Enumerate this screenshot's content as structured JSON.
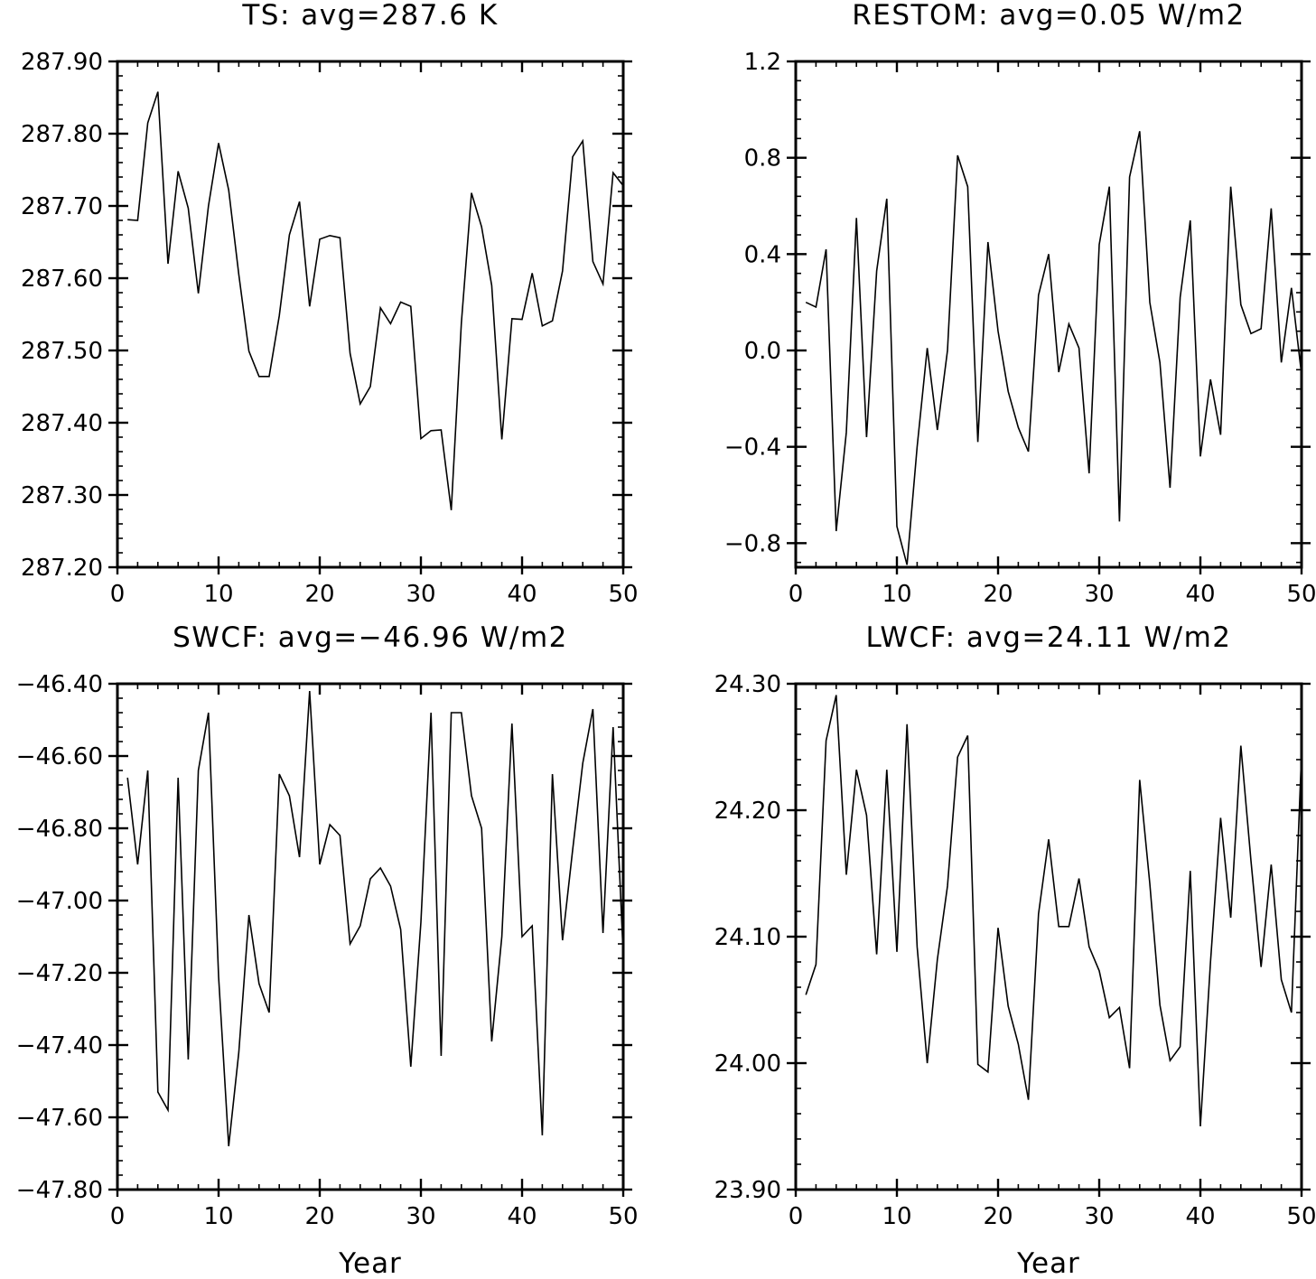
{
  "chart_data": [
    {
      "type": "line",
      "title": "TS: avg=287.6 K",
      "xlabel": "",
      "ylabel": "",
      "xlim": [
        0,
        50
      ],
      "ylim": [
        287.2,
        287.9
      ],
      "x_ticks": [
        0,
        10,
        20,
        30,
        40,
        50
      ],
      "x_tick_labels": [
        "0",
        "10",
        "20",
        "30",
        "40",
        "50"
      ],
      "y_ticks": [
        287.2,
        287.3,
        287.4,
        287.5,
        287.6,
        287.7,
        287.8,
        287.9
      ],
      "y_tick_labels": [
        "287.20",
        "287.30",
        "287.40",
        "287.50",
        "287.60",
        "287.70",
        "287.80",
        "287.90"
      ],
      "x": [
        1,
        2,
        3,
        4,
        5,
        6,
        7,
        8,
        9,
        10,
        11,
        12,
        13,
        14,
        15,
        16,
        17,
        18,
        19,
        20,
        21,
        22,
        23,
        24,
        25,
        26,
        27,
        28,
        29,
        30,
        31,
        32,
        33,
        34,
        35,
        36,
        37,
        38,
        39,
        40,
        41,
        42,
        43,
        44,
        45,
        46,
        47,
        48,
        49,
        50
      ],
      "values": [
        287.681,
        287.68,
        287.815,
        287.858,
        287.62,
        287.748,
        287.697,
        287.579,
        287.7,
        287.787,
        287.722,
        287.605,
        287.499,
        287.464,
        287.464,
        287.548,
        287.66,
        287.706,
        287.561,
        287.654,
        287.659,
        287.656,
        287.496,
        287.426,
        287.45,
        287.559,
        287.537,
        287.567,
        287.561,
        287.378,
        287.389,
        287.39,
        287.279,
        287.538,
        287.718,
        287.671,
        287.59,
        287.377,
        287.544,
        287.543,
        287.607,
        287.534,
        287.541,
        287.61,
        287.768,
        287.79,
        287.623,
        287.592,
        287.746,
        287.728
      ],
      "grid": false
    },
    {
      "type": "line",
      "title": "RESTOM: avg=0.05 W/m2",
      "xlabel": "",
      "ylabel": "",
      "xlim": [
        0,
        50
      ],
      "ylim": [
        -0.9,
        1.2
      ],
      "x_ticks": [
        0,
        10,
        20,
        30,
        40,
        50
      ],
      "x_tick_labels": [
        "0",
        "10",
        "20",
        "30",
        "40",
        "50"
      ],
      "y_ticks": [
        -0.8,
        -0.4,
        0.0,
        0.4,
        0.8,
        1.2
      ],
      "y_tick_labels": [
        "−0.8",
        "−0.4",
        "0.0",
        "0.4",
        "0.8",
        "1.2"
      ],
      "x": [
        1,
        2,
        3,
        4,
        5,
        6,
        7,
        8,
        9,
        10,
        11,
        12,
        13,
        14,
        15,
        16,
        17,
        18,
        19,
        20,
        21,
        22,
        23,
        24,
        25,
        26,
        27,
        28,
        29,
        30,
        31,
        32,
        33,
        34,
        35,
        36,
        37,
        38,
        39,
        40,
        41,
        42,
        43,
        44,
        45,
        46,
        47,
        48,
        49,
        50
      ],
      "values": [
        0.2,
        0.18,
        0.42,
        -0.75,
        -0.34,
        0.55,
        -0.36,
        0.33,
        0.63,
        -0.73,
        -0.89,
        -0.4,
        0.01,
        -0.33,
        0.0,
        0.81,
        0.68,
        -0.38,
        0.45,
        0.08,
        -0.17,
        -0.32,
        -0.42,
        0.23,
        0.4,
        -0.09,
        0.11,
        0.01,
        -0.51,
        0.44,
        0.68,
        -0.71,
        0.72,
        0.91,
        0.2,
        -0.05,
        -0.57,
        0.22,
        0.54,
        -0.44,
        -0.12,
        -0.35,
        0.68,
        0.19,
        0.07,
        0.09,
        0.59,
        -0.05,
        0.26,
        -0.1
      ],
      "grid": false
    },
    {
      "type": "line",
      "title": "SWCF: avg=−46.96 W/m2",
      "xlabel": "Year",
      "ylabel": "",
      "xlim": [
        0,
        50
      ],
      "ylim": [
        -47.8,
        -46.4
      ],
      "x_ticks": [
        0,
        10,
        20,
        30,
        40,
        50
      ],
      "x_tick_labels": [
        "0",
        "10",
        "20",
        "30",
        "40",
        "50"
      ],
      "y_ticks": [
        -47.8,
        -47.6,
        -47.4,
        -47.2,
        -47.0,
        -46.8,
        -46.6,
        -46.4
      ],
      "y_tick_labels": [
        "−47.80",
        "−47.60",
        "−47.40",
        "−47.20",
        "−47.00",
        "−46.80",
        "−46.60",
        "−46.40"
      ],
      "x": [
        1,
        2,
        3,
        4,
        5,
        6,
        7,
        8,
        9,
        10,
        11,
        12,
        13,
        14,
        15,
        16,
        17,
        18,
        19,
        20,
        21,
        22,
        23,
        24,
        25,
        26,
        27,
        28,
        29,
        30,
        31,
        32,
        33,
        34,
        35,
        36,
        37,
        38,
        39,
        40,
        41,
        42,
        43,
        44,
        45,
        46,
        47,
        48,
        49,
        50
      ],
      "values": [
        -46.66,
        -46.9,
        -46.64,
        -47.53,
        -47.58,
        -46.66,
        -47.44,
        -46.64,
        -46.48,
        -47.21,
        -47.68,
        -47.42,
        -47.04,
        -47.23,
        -47.31,
        -46.65,
        -46.71,
        -46.88,
        -46.42,
        -46.9,
        -46.79,
        -46.82,
        -47.12,
        -47.07,
        -46.94,
        -46.91,
        -46.96,
        -47.08,
        -47.46,
        -47.06,
        -46.48,
        -47.43,
        -46.48,
        -46.48,
        -46.71,
        -46.8,
        -47.39,
        -47.1,
        -46.51,
        -47.1,
        -47.07,
        -47.65,
        -46.65,
        -47.11,
        -46.86,
        -46.62,
        -46.47,
        -47.09,
        -46.52,
        -47.15
      ],
      "grid": false
    },
    {
      "type": "line",
      "title": "LWCF: avg=24.11 W/m2",
      "xlabel": "Year",
      "ylabel": "",
      "xlim": [
        0,
        50
      ],
      "ylim": [
        23.9,
        24.3
      ],
      "x_ticks": [
        0,
        10,
        20,
        30,
        40,
        50
      ],
      "x_tick_labels": [
        "0",
        "10",
        "20",
        "30",
        "40",
        "50"
      ],
      "y_ticks": [
        23.9,
        24.0,
        24.1,
        24.2,
        24.3
      ],
      "y_tick_labels": [
        "23.90",
        "24.00",
        "24.10",
        "24.20",
        "24.30"
      ],
      "x": [
        1,
        2,
        3,
        4,
        5,
        6,
        7,
        8,
        9,
        10,
        11,
        12,
        13,
        14,
        15,
        16,
        17,
        18,
        19,
        20,
        21,
        22,
        23,
        24,
        25,
        26,
        27,
        28,
        29,
        30,
        31,
        32,
        33,
        34,
        35,
        36,
        37,
        38,
        39,
        40,
        41,
        42,
        43,
        44,
        45,
        46,
        47,
        48,
        49,
        50
      ],
      "values": [
        24.054,
        24.078,
        24.255,
        24.291,
        24.149,
        24.232,
        24.196,
        24.086,
        24.232,
        24.088,
        24.268,
        24.092,
        24.0,
        24.082,
        24.14,
        24.242,
        24.259,
        23.999,
        23.993,
        24.107,
        24.045,
        24.015,
        23.971,
        24.118,
        24.177,
        24.108,
        24.108,
        24.146,
        24.092,
        24.073,
        24.036,
        24.044,
        23.996,
        24.224,
        24.142,
        24.046,
        24.002,
        24.013,
        24.152,
        23.95,
        24.08,
        24.194,
        24.115,
        24.251,
        24.16,
        24.076,
        24.157,
        24.066,
        24.04,
        24.245
      ],
      "grid": false
    }
  ]
}
